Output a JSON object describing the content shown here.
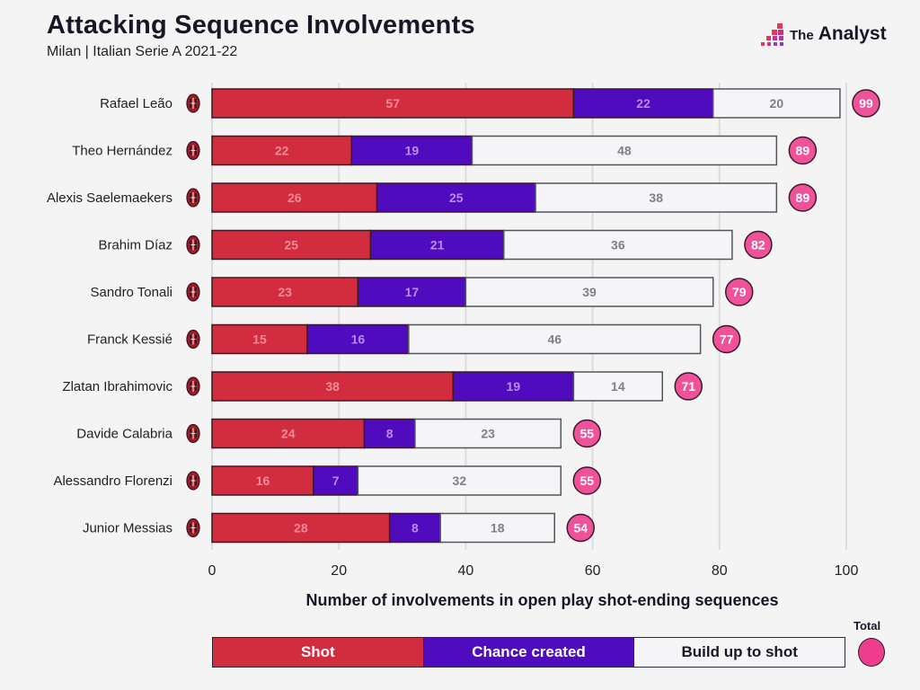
{
  "header": {
    "title": "Attacking Sequence Involvements",
    "subtitle": "Milan | Italian Serie A 2021-22",
    "logo_prefix": "The",
    "logo_name": "Analyst"
  },
  "colors": {
    "shot": "#d22d3f",
    "chance": "#4f0bbd",
    "build": "#f5f5f7",
    "total": "#f0529a",
    "shot_label": "#f08a96",
    "chance_label": "#b88cf0",
    "build_label": "#7f7f88"
  },
  "legend": {
    "shot": "Shot",
    "chance": "Chance created",
    "build": "Build up to shot",
    "total": "Total"
  },
  "team_icon": "ac-milan-crest-icon",
  "chart_data": {
    "type": "bar",
    "orientation": "horizontal",
    "stacked": true,
    "title": "Attacking Sequence Involvements",
    "subtitle": "Milan | Italian Serie A 2021-22",
    "xlabel": "Number of involvements in open play shot-ending sequences",
    "ylabel": "",
    "xlim": [
      0,
      100
    ],
    "xticks": [
      0,
      20,
      40,
      60,
      80,
      100
    ],
    "grid": true,
    "legend_position": "bottom",
    "categories": [
      "Rafael Leão",
      "Theo Hernández",
      "Alexis Saelemaekers",
      "Brahim Díaz",
      "Sandro Tonali",
      "Franck Kessié",
      "Zlatan Ibrahimovic",
      "Davide Calabria",
      "Alessandro Florenzi",
      "Junior Messias"
    ],
    "series": [
      {
        "name": "Shot",
        "values": [
          57,
          22,
          26,
          25,
          23,
          15,
          38,
          24,
          16,
          28
        ]
      },
      {
        "name": "Chance created",
        "values": [
          22,
          19,
          25,
          21,
          17,
          16,
          19,
          8,
          7,
          8
        ]
      },
      {
        "name": "Build up to shot",
        "values": [
          20,
          48,
          38,
          36,
          39,
          46,
          14,
          23,
          32,
          18
        ]
      }
    ],
    "totals": [
      99,
      89,
      89,
      82,
      79,
      77,
      71,
      55,
      55,
      54
    ]
  }
}
